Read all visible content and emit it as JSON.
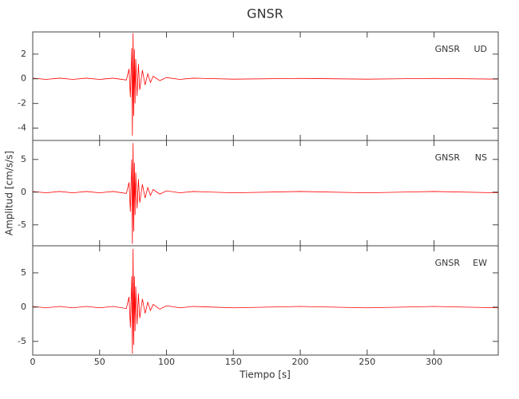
{
  "chart_data": {
    "type": "line",
    "title": "GNSR",
    "xlabel": "Tiempo [s]",
    "ylabel": "Amplitud [cm/s/s]",
    "x": [
      0,
      10,
      20,
      30,
      40,
      50,
      60,
      70,
      72,
      73,
      74,
      74.5,
      75,
      75.5,
      76,
      76.5,
      77,
      78,
      79,
      80,
      82,
      84,
      86,
      88,
      90,
      95,
      100,
      110,
      120,
      150,
      200,
      250,
      300,
      348
    ],
    "xlim": [
      0,
      348
    ],
    "xticks": [
      0,
      50,
      100,
      150,
      200,
      250,
      300
    ],
    "panels": [
      {
        "station": "GNSR",
        "component": "UD",
        "ylim": [
          -5,
          3.8
        ],
        "yticks": [
          -4,
          -2,
          0,
          2
        ],
        "series": [
          {
            "color": "#ff0000",
            "values": [
              0.05,
              -0.05,
              0.05,
              -0.05,
              0.05,
              -0.05,
              0.05,
              -0.1,
              0.8,
              -1.5,
              2.5,
              -4.6,
              3.7,
              -3.0,
              2.4,
              -2.0,
              1.6,
              -1.4,
              1.2,
              -0.9,
              0.7,
              -0.5,
              0.4,
              -0.3,
              0.2,
              -0.15,
              0.1,
              -0.05,
              0.05,
              -0.03,
              0.03,
              -0.03,
              0.03,
              -0.03
            ]
          }
        ]
      },
      {
        "station": "GNSR",
        "component": "NS",
        "ylim": [
          -8.2,
          7.9
        ],
        "yticks": [
          -5,
          0,
          5
        ],
        "series": [
          {
            "color": "#ff0000",
            "values": [
              0.1,
              -0.1,
              0.1,
              -0.1,
              0.1,
              -0.1,
              0.1,
              -0.2,
              1.5,
              -3,
              5,
              -7.9,
              7.5,
              -6,
              4.5,
              -3.5,
              3,
              -2.5,
              2,
              -1.6,
              1.2,
              -0.9,
              0.7,
              -0.5,
              0.4,
              -0.3,
              0.2,
              -0.1,
              0.1,
              -0.1,
              0.1,
              -0.1,
              0.1,
              -0.1
            ]
          }
        ]
      },
      {
        "station": "GNSR",
        "component": "EW",
        "ylim": [
          -7,
          8.95
        ],
        "yticks": [
          -5,
          0,
          5
        ],
        "series": [
          {
            "color": "#ff0000",
            "values": [
              0.1,
              -0.1,
              0.1,
              -0.1,
              0.1,
              -0.1,
              0.1,
              -0.2,
              1.5,
              -3,
              4.5,
              -6.8,
              8.5,
              -5.5,
              4.5,
              -3.5,
              3,
              -2.5,
              2,
              -1.6,
              1.2,
              -0.9,
              0.7,
              -0.5,
              0.4,
              -0.3,
              0.2,
              -0.1,
              0.1,
              -0.1,
              0.1,
              -0.1,
              0.1,
              -0.1
            ]
          }
        ]
      }
    ]
  }
}
